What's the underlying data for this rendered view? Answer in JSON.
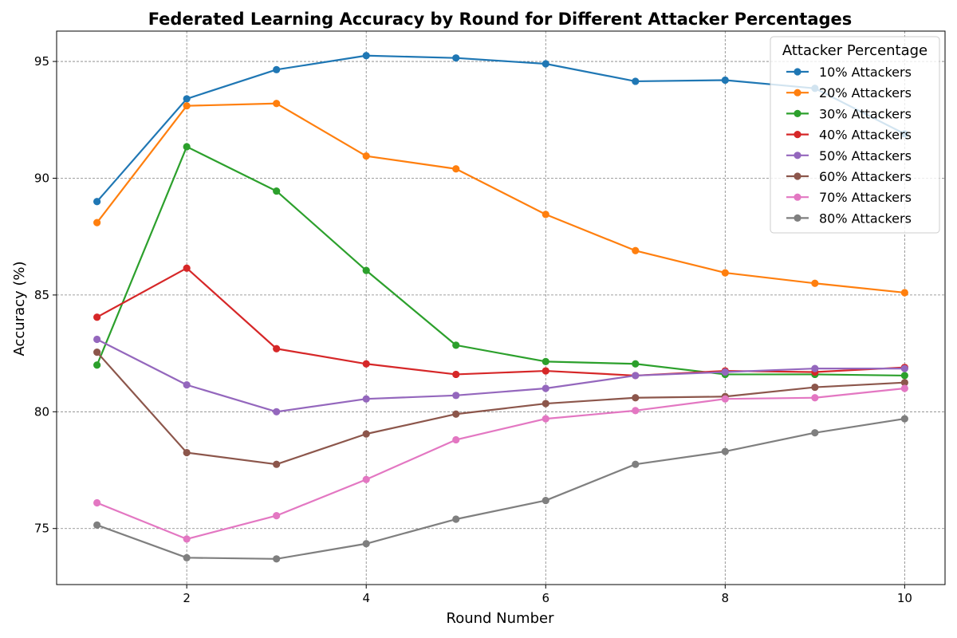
{
  "chart_data": {
    "type": "line",
    "title": "Federated Learning Accuracy by Round for Different Attacker Percentages",
    "xlabel": "Round Number",
    "ylabel": "Accuracy (%)",
    "x": [
      1,
      2,
      3,
      4,
      5,
      6,
      7,
      8,
      9,
      10
    ],
    "xlim": [
      0.55,
      10.45
    ],
    "ylim": [
      72.6,
      96.3
    ],
    "xticks": [
      2,
      4,
      6,
      8,
      10
    ],
    "yticks": [
      75,
      80,
      85,
      90,
      95
    ],
    "grid": true,
    "legend": {
      "title": "Attacker Percentage",
      "placement": "top-right"
    },
    "series": [
      {
        "name": "10% Attackers",
        "color": "#1f77b4",
        "values": [
          89.0,
          93.4,
          94.65,
          95.25,
          95.15,
          94.9,
          94.15,
          94.2,
          93.85,
          91.9
        ]
      },
      {
        "name": "20% Attackers",
        "color": "#ff7f0e",
        "values": [
          88.1,
          93.1,
          93.2,
          90.95,
          90.4,
          88.45,
          86.9,
          85.95,
          85.5,
          85.1
        ]
      },
      {
        "name": "30% Attackers",
        "color": "#2ca02c",
        "values": [
          82.0,
          91.35,
          89.45,
          86.05,
          82.85,
          82.15,
          82.05,
          81.6,
          81.6,
          81.55
        ]
      },
      {
        "name": "40% Attackers",
        "color": "#d62728",
        "values": [
          84.05,
          86.15,
          82.7,
          82.05,
          81.6,
          81.75,
          81.55,
          81.75,
          81.7,
          81.9
        ]
      },
      {
        "name": "50% Attackers",
        "color": "#9467bd",
        "values": [
          83.1,
          81.15,
          80.0,
          80.55,
          80.7,
          81.0,
          81.55,
          81.7,
          81.85,
          81.85
        ]
      },
      {
        "name": "60% Attackers",
        "color": "#8c564b",
        "values": [
          82.55,
          78.25,
          77.75,
          79.05,
          79.9,
          80.35,
          80.6,
          80.65,
          81.05,
          81.25
        ]
      },
      {
        "name": "70% Attackers",
        "color": "#e377c2",
        "values": [
          76.1,
          74.55,
          75.55,
          77.1,
          78.8,
          79.7,
          80.05,
          80.55,
          80.6,
          81.0
        ]
      },
      {
        "name": "80% Attackers",
        "color": "#7f7f7f",
        "values": [
          75.15,
          73.75,
          73.7,
          74.35,
          75.4,
          76.2,
          77.75,
          78.3,
          79.1,
          79.7
        ]
      }
    ]
  }
}
